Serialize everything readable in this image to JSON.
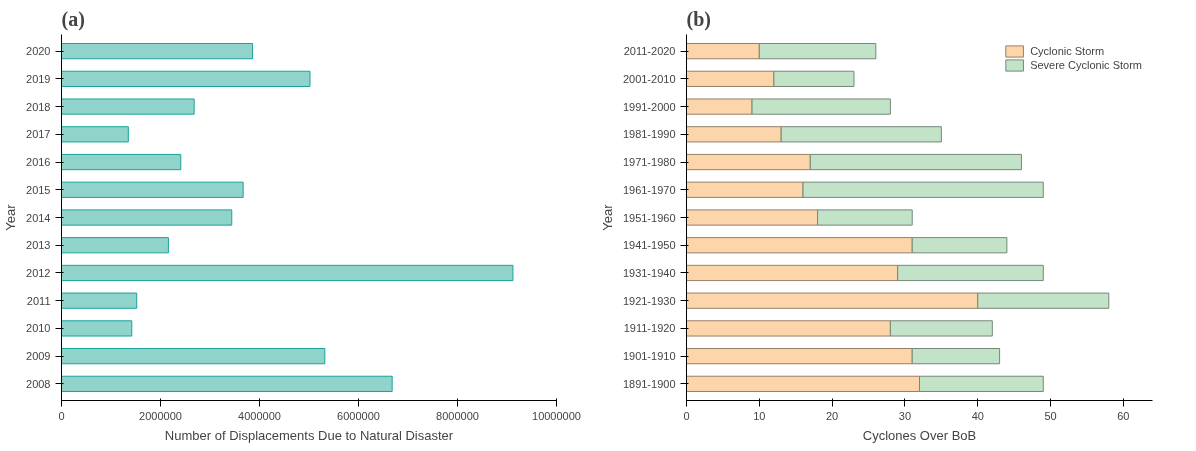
{
  "chart_data": [
    {
      "type": "bar",
      "orientation": "horizontal",
      "title": "(a)",
      "xlabel": "Number of Displacements Due to Natural Disaster",
      "ylabel": "Year",
      "categories": [
        "2020",
        "2019",
        "2018",
        "2017",
        "2016",
        "2015",
        "2014",
        "2013",
        "2012",
        "2011",
        "2010",
        "2009",
        "2008"
      ],
      "values": [
        3860000,
        5020000,
        2680000,
        1350000,
        2410000,
        3670000,
        3440000,
        2160000,
        9120000,
        1520000,
        1420000,
        5320000,
        6680000
      ],
      "color": "#8fd3cb",
      "xlim": [
        0,
        10000000
      ],
      "xticks": [
        0,
        2000000,
        4000000,
        6000000,
        8000000,
        10000000
      ],
      "grid": false,
      "legend": false
    },
    {
      "type": "bar",
      "orientation": "horizontal",
      "stacked": true,
      "title": "(b)",
      "xlabel": "Cyclones Over BoB",
      "ylabel": "Year",
      "categories": [
        "2011-2020",
        "2001-2010",
        "1991-2000",
        "1981-1990",
        "1971-1980",
        "1961-1970",
        "1951-1960",
        "1941-1950",
        "1931-1940",
        "1921-1930",
        "1911-1920",
        "1901-1910",
        "1891-1900"
      ],
      "series": [
        {
          "name": "Cyclonic Storm",
          "color": "#fdd5ab",
          "values": [
            10,
            12,
            9,
            13,
            17,
            16,
            18,
            31,
            29,
            40,
            28,
            31,
            32
          ]
        },
        {
          "name": "Severe Cyclonic Storm",
          "color": "#c3e3c8",
          "values": [
            16,
            11,
            19,
            22,
            29,
            33,
            13,
            13,
            20,
            18,
            14,
            12,
            17
          ]
        }
      ],
      "xlim": [
        0,
        64
      ],
      "xticks": [
        0,
        10,
        20,
        30,
        40,
        50,
        60
      ],
      "grid": false,
      "legend": "top right"
    }
  ]
}
